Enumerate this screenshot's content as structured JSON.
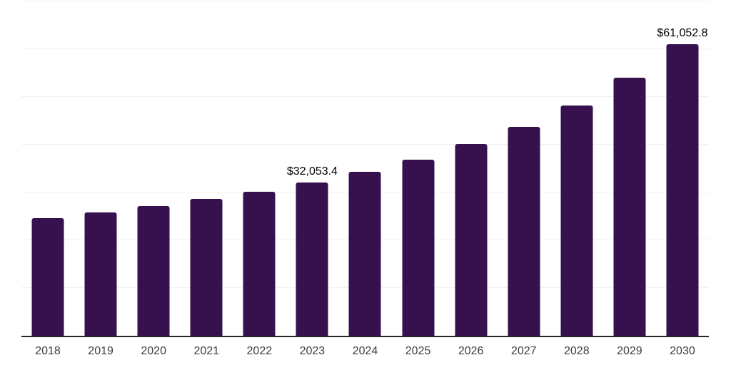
{
  "chart_data": {
    "type": "bar",
    "title": "",
    "xlabel": "",
    "ylabel": "",
    "categories": [
      "2018",
      "2019",
      "2020",
      "2021",
      "2022",
      "2023",
      "2024",
      "2025",
      "2026",
      "2027",
      "2028",
      "2029",
      "2030"
    ],
    "values": [
      24600,
      25800,
      27200,
      28700,
      30200,
      32053.4,
      34400,
      36800,
      40100,
      43800,
      48250,
      54050,
      61052.8
    ],
    "value_labels": {
      "2023": "$32,053.4",
      "2030": "$61,052.8"
    },
    "ylim": [
      0,
      70000
    ],
    "grid_step": 10000,
    "grid": "horizontal-only",
    "legend": "none",
    "y_axis_tick_labels": "none",
    "colors": {
      "bar": "#36114E",
      "gridline": "#f0f0f0",
      "axis_line": "#262626",
      "tick_label": "#3d3d3d",
      "value_label": "#000000",
      "background": "#ffffff"
    }
  }
}
